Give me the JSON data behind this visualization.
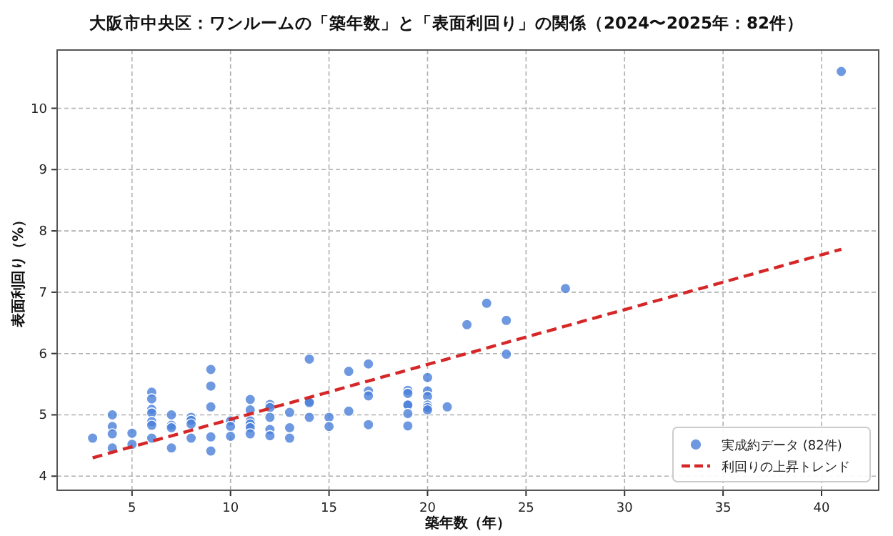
{
  "chart_data": {
    "type": "scatter",
    "title": "大阪市中央区：ワンルームの「築年数」と「表面利回り」の関係（2024〜2025年：82件）",
    "xlabel": "築年数（年）",
    "ylabel": "表面利回り（%）",
    "xlim": [
      1.2,
      42.9
    ],
    "ylim": [
      3.77,
      10.95
    ],
    "xticks": [
      5,
      10,
      15,
      20,
      25,
      30,
      35,
      40
    ],
    "yticks": [
      4,
      5,
      6,
      7,
      8,
      9,
      10
    ],
    "grid": true,
    "legend": "bottom right",
    "series": [
      {
        "name": "実成約データ (82件)",
        "marker": "circle",
        "color": "#4a7fd9",
        "x": [
          3,
          4,
          4,
          4,
          4,
          5,
          5,
          6,
          6,
          6,
          6,
          6,
          6,
          6,
          7,
          7,
          7,
          7,
          8,
          8,
          8,
          8,
          9,
          9,
          9,
          9,
          9,
          10,
          10,
          10,
          11,
          11,
          11,
          11,
          11,
          11,
          12,
          12,
          12,
          12,
          12,
          13,
          13,
          13,
          14,
          14,
          14,
          14,
          15,
          15,
          16,
          16,
          17,
          17,
          17,
          17,
          19,
          19,
          19,
          19,
          19,
          19,
          20,
          20,
          20,
          20,
          20,
          20,
          21,
          22,
          23,
          24,
          24,
          27,
          41
        ],
        "values": [
          4.62,
          5.0,
          4.81,
          4.69,
          4.46,
          4.7,
          4.52,
          5.37,
          5.26,
          5.09,
          5.03,
          4.89,
          4.83,
          4.62,
          5.0,
          4.83,
          4.79,
          4.46,
          4.96,
          4.91,
          4.85,
          4.62,
          5.74,
          5.47,
          5.13,
          4.64,
          4.41,
          4.9,
          4.81,
          4.65,
          5.25,
          5.08,
          4.9,
          4.85,
          4.79,
          4.69,
          5.17,
          5.12,
          4.96,
          4.76,
          4.66,
          5.04,
          4.79,
          4.62,
          5.91,
          5.22,
          5.2,
          4.96,
          4.96,
          4.81,
          5.71,
          5.06,
          5.83,
          5.39,
          5.31,
          4.84,
          5.4,
          5.35,
          5.17,
          5.16,
          5.02,
          4.82,
          5.61,
          5.39,
          5.3,
          5.16,
          5.12,
          5.08,
          5.13,
          6.47,
          6.82,
          6.54,
          5.99,
          7.06,
          10.6
        ]
      },
      {
        "name": "利回りの上昇トレンド",
        "type": "line",
        "color": "#d62728",
        "line_style": "dashed",
        "x": [
          3,
          41
        ],
        "values": [
          4.3,
          7.7
        ]
      }
    ]
  }
}
